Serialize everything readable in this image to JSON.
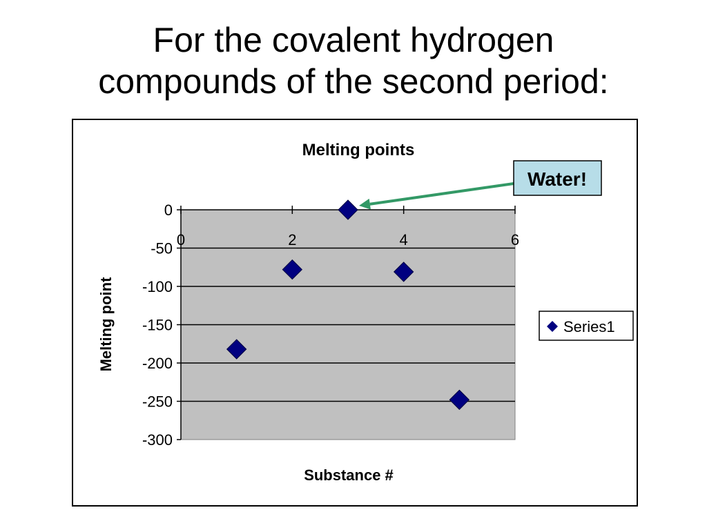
{
  "slide": {
    "title_lines": [
      "For the covalent hydrogen",
      "compounds of the second period:"
    ]
  },
  "chart_data": {
    "type": "scatter",
    "title": "Melting points",
    "xlabel": "Substance #",
    "ylabel": "Melting point",
    "xlim": [
      0,
      6
    ],
    "ylim": [
      -300,
      0
    ],
    "x_ticks": [
      0,
      2,
      4,
      6
    ],
    "y_ticks": [
      0,
      -50,
      -100,
      -150,
      -200,
      -250,
      -300
    ],
    "grid": "horizontal",
    "legend_position": "right",
    "series": [
      {
        "name": "Series1",
        "marker": "diamond",
        "color": "#000080",
        "x": [
          1,
          2,
          3,
          4,
          5
        ],
        "y": [
          -182,
          -78,
          0,
          -81,
          -248
        ]
      }
    ],
    "annotation": {
      "text": "Water!",
      "target_x": 3,
      "target_y": 0,
      "box_color": "#b7dde8",
      "arrow_color": "#339966"
    },
    "plot_background": "#c0c0c0"
  }
}
